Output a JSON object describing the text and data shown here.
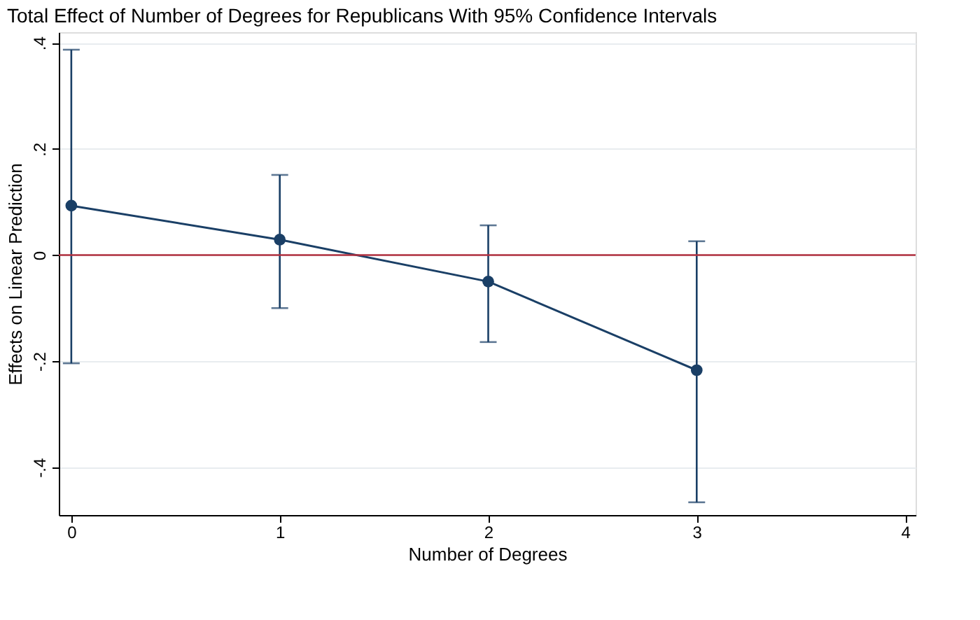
{
  "chart_data": {
    "type": "line",
    "title": "Total Effect of Number of Degrees for Republicans With 95% Confidence Intervals",
    "xlabel": "Number of Degrees",
    "ylabel": "Effects on Linear Prediction",
    "x": [
      0,
      1,
      2,
      3
    ],
    "series": [
      {
        "color": "#1a3f66",
        "values": [
          0.093,
          0.029,
          -0.05,
          -0.217
        ],
        "errors": [
          [
            -0.204,
            0.387
          ],
          [
            -0.1,
            0.151
          ],
          [
            -0.164,
            0.056
          ],
          [
            -0.466,
            0.026
          ]
        ]
      }
    ],
    "xlim": [
      -0.06,
      4.05
    ],
    "xticks": [
      0,
      1,
      2,
      3,
      4
    ],
    "ylim": [
      -0.49,
      0.42
    ],
    "yticks": [
      {
        "value": -0.4,
        "label": "-.4"
      },
      {
        "value": -0.2,
        "label": "-.2"
      },
      0,
      {
        "value": 0.2,
        "label": ".2"
      },
      {
        "value": 0.4,
        "label": ".4"
      }
    ],
    "ref_lines": [
      {
        "axis": "y",
        "value": 0,
        "color": "#b0303f"
      }
    ],
    "grid": "y",
    "marker": "circle",
    "line_style": "solid"
  }
}
